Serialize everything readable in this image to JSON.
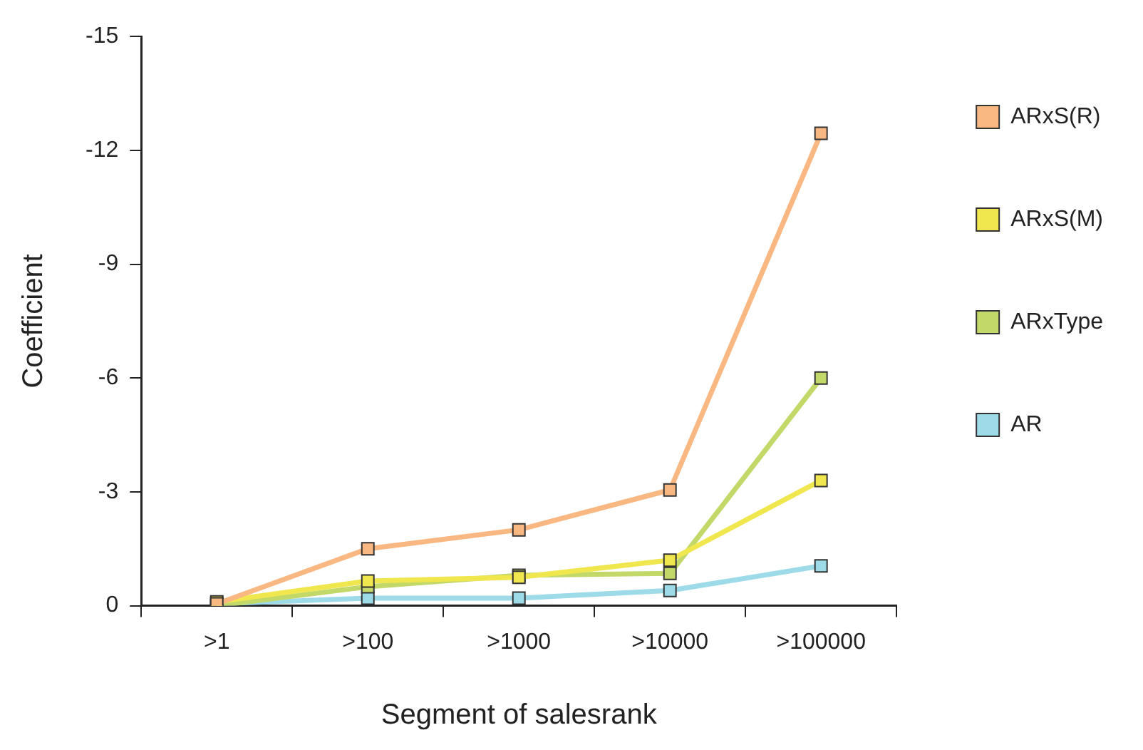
{
  "chart_data": {
    "type": "line",
    "xlabel": "Segment of salesrank",
    "ylabel": "Coefficient",
    "categories": [
      ">1",
      ">100",
      ">1000",
      ">10000",
      ">100000"
    ],
    "series": [
      {
        "name": "ARxS(R)",
        "color": "#f9b782",
        "values": [
          -0.05,
          -1.5,
          -2.0,
          -3.05,
          -12.45
        ]
      },
      {
        "name": "ARxS(M)",
        "color": "#f0e64e",
        "values": [
          -0.1,
          -0.65,
          -0.75,
          -1.2,
          -3.3
        ]
      },
      {
        "name": "ARxType",
        "color": "#c2d96a",
        "values": [
          0,
          -0.5,
          -0.8,
          -0.85,
          -6.0
        ]
      },
      {
        "name": "AR",
        "color": "#9edbe8",
        "values": [
          -0.05,
          -0.2,
          -0.2,
          -0.4,
          -1.05
        ]
      }
    ],
    "ylim": [
      0,
      -15
    ],
    "yticks": [
      0,
      -3,
      -6,
      -9,
      -12,
      -15
    ],
    "grid": false,
    "legend": "right",
    "marker": "square",
    "line_style": "solid"
  }
}
